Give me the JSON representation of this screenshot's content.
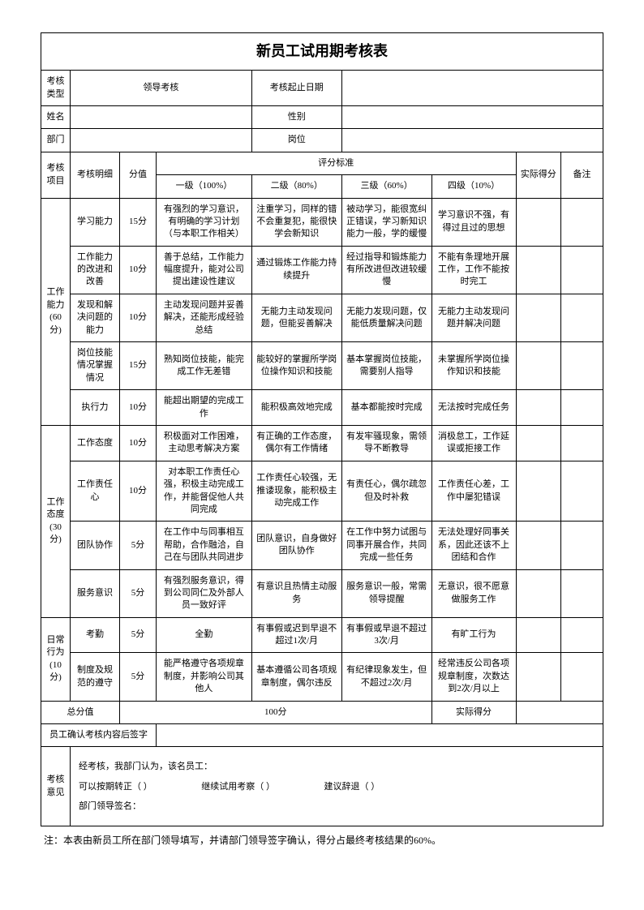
{
  "title": "新员工试用期考核表",
  "header": {
    "type_label": "考核类型",
    "type_value": "领导考核",
    "date_label": "考核起止日期",
    "name_label": "姓名",
    "gender_label": "性别",
    "dept_label": "部门",
    "post_label": "岗位"
  },
  "table_head": {
    "project": "考核项目",
    "detail": "考核明细",
    "score": "分值",
    "standard": "评分标准",
    "actual": "实际得分",
    "remark": "备注",
    "lv1": "一级（100%）",
    "lv2": "二级（80%）",
    "lv3": "三级（60%）",
    "lv4": "四级（10%）"
  },
  "sections": {
    "A": {
      "name": "工作能力(60分)",
      "rows": [
        {
          "d": "学习能力",
          "s": "15分",
          "l1": "有强烈的学习意识，有明确的学习计划（与本职工作相关）",
          "l2": "注重学习，同样的错不会重复犯，能很快学会新知识",
          "l3": "被动学习，能很宽纠正错误，学习新知识能力一般，学的缓慢",
          "l4": "学习意识不强，有得过且过的思想"
        },
        {
          "d": "工作能力的改进和改善",
          "s": "10分",
          "l1": "善于总结，工作能力幅度提升，能对公司提出建设性建议",
          "l2": "通过锻炼工作能力持续提升",
          "l3": "经过指导和锻炼能力有所改进但改进较缓慢",
          "l4": "不能有条理地开展工作，工作不能按时完工"
        },
        {
          "d": "发现和解决问题的能力",
          "s": "10分",
          "l1": "主动发现问题并妥善解决，还能形成经验总结",
          "l2": "无能力主动发现问题，但能妥善解决",
          "l3": "无能力发现问题，仅能低质量解决问题",
          "l4": "无能力主动发现问题并解决问题"
        },
        {
          "d": "岗位技能情况掌握情况",
          "s": "15分",
          "l1": "熟知岗位技能，能完成工作无差错",
          "l2": "能较好的掌握所学岗位操作知识和技能",
          "l3": "基本掌握岗位技能，需要别人指导",
          "l4": "未掌握所学岗位操作知识和技能"
        },
        {
          "d": "执行力",
          "s": "10分",
          "l1": "能超出期望的完成工作",
          "l2": "能积极高效地完成",
          "l3": "基本都能按时完成",
          "l4": "无法按时完成任务"
        }
      ]
    },
    "B": {
      "name": "工作态度(30分)",
      "rows": [
        {
          "d": "工作态度",
          "s": "10分",
          "l1": "积极面对工作困难，主动思考解决方案",
          "l2": "有正确的工作态度，偶尔有工作情绪",
          "l3": "有发牢骚现象，需领导不断教导",
          "l4": "消极怠工，工作延误或拒接工作"
        },
        {
          "d": "工作责任心",
          "s": "10分",
          "l1": "对本职工作责任心强，积极主动完成工作，并能督促他人共同完成",
          "l2": "工作责任心较强，无推诿现象，能积极主动完成工作",
          "l3": "有责任心，偶尔疏忽但及时补救",
          "l4": "工作责任心差，工作中屡犯错误"
        },
        {
          "d": "团队协作",
          "s": "5分",
          "l1": "在工作中与同事相互帮助，合作融洽，自己在与团队共同进步",
          "l2": "团队意识，自身做好团队协作",
          "l3": "在工作中努力试图与同事开展合作，共同完成一些任务",
          "l4": "无法处理好同事关系，因此还该不上团结和合作"
        },
        {
          "d": "服务意识",
          "s": "5分",
          "l1": "有强烈服务意识，得到公司同仁及外部人员一致好评",
          "l2": "有意识且热情主动服务",
          "l3": "服务意识一般，常需领导提醒",
          "l4": "无意识，很不愿意做服务工作"
        }
      ]
    },
    "C": {
      "name": "日常行为(10分)",
      "rows": [
        {
          "d": "考勤",
          "s": "5分",
          "l1": "全勤",
          "l2": "有事假或迟到早退不超过1次/月",
          "l3": "有事假或早退不超过3次/月",
          "l4": "有旷工行为"
        },
        {
          "d": "制度及规范的遵守",
          "s": "5分",
          "l1": "能严格遵守各项规章制度，并影响公司其他人",
          "l2": "基本遵循公司各项规章制度，偶尔违反",
          "l3": "有纪律现象发生，但不超过2次/月",
          "l4": "经常违反公司各项规章制度，次数达到2次/月以上"
        }
      ]
    }
  },
  "total": {
    "label": "总分值",
    "value": "100分",
    "actual_label": "实际得分"
  },
  "sign_label": "员工确认考核内容后签字",
  "opinion": {
    "label": "考核意见",
    "line1": "经考核，我部门认为，该名员工：",
    "opts": "可以按期转正（ ）                      继续试用考察（ ）                      建议辞退（ ）",
    "sign": "部门领导签名："
  },
  "note": "注：本表由新员工所在部门领导填写，并请部门领导签字确认，得分占最终考核结果的60%。"
}
